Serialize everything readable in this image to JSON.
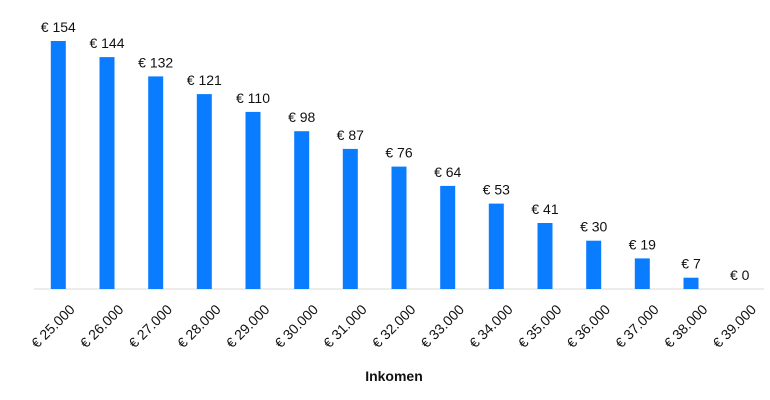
{
  "chart_data": {
    "type": "bar",
    "title": "",
    "xlabel": "Inkomen",
    "ylabel": "",
    "categories": [
      "€ 25.000",
      "€ 26.000",
      "€ 27.000",
      "€ 28.000",
      "€ 29.000",
      "€ 30.000",
      "€ 31.000",
      "€ 32.000",
      "€ 33.000",
      "€ 34.000",
      "€ 35.000",
      "€ 36.000",
      "€ 37.000",
      "€ 38.000",
      "€ 39.000"
    ],
    "values": [
      154,
      144,
      132,
      121,
      110,
      98,
      87,
      76,
      64,
      53,
      41,
      30,
      19,
      7,
      0
    ],
    "value_labels": [
      "€ 154",
      "€ 144",
      "€ 132",
      "€ 121",
      "€ 110",
      "€ 98",
      "€ 87",
      "€ 76",
      "€ 64",
      "€ 53",
      "€ 41",
      "€ 30",
      "€ 19",
      "€ 7",
      "€ 0"
    ],
    "ylim": [
      0,
      154
    ],
    "grid": false,
    "legend": "none",
    "bar_color": "#0a7cff",
    "baseline_color": "#d9d9d9"
  }
}
